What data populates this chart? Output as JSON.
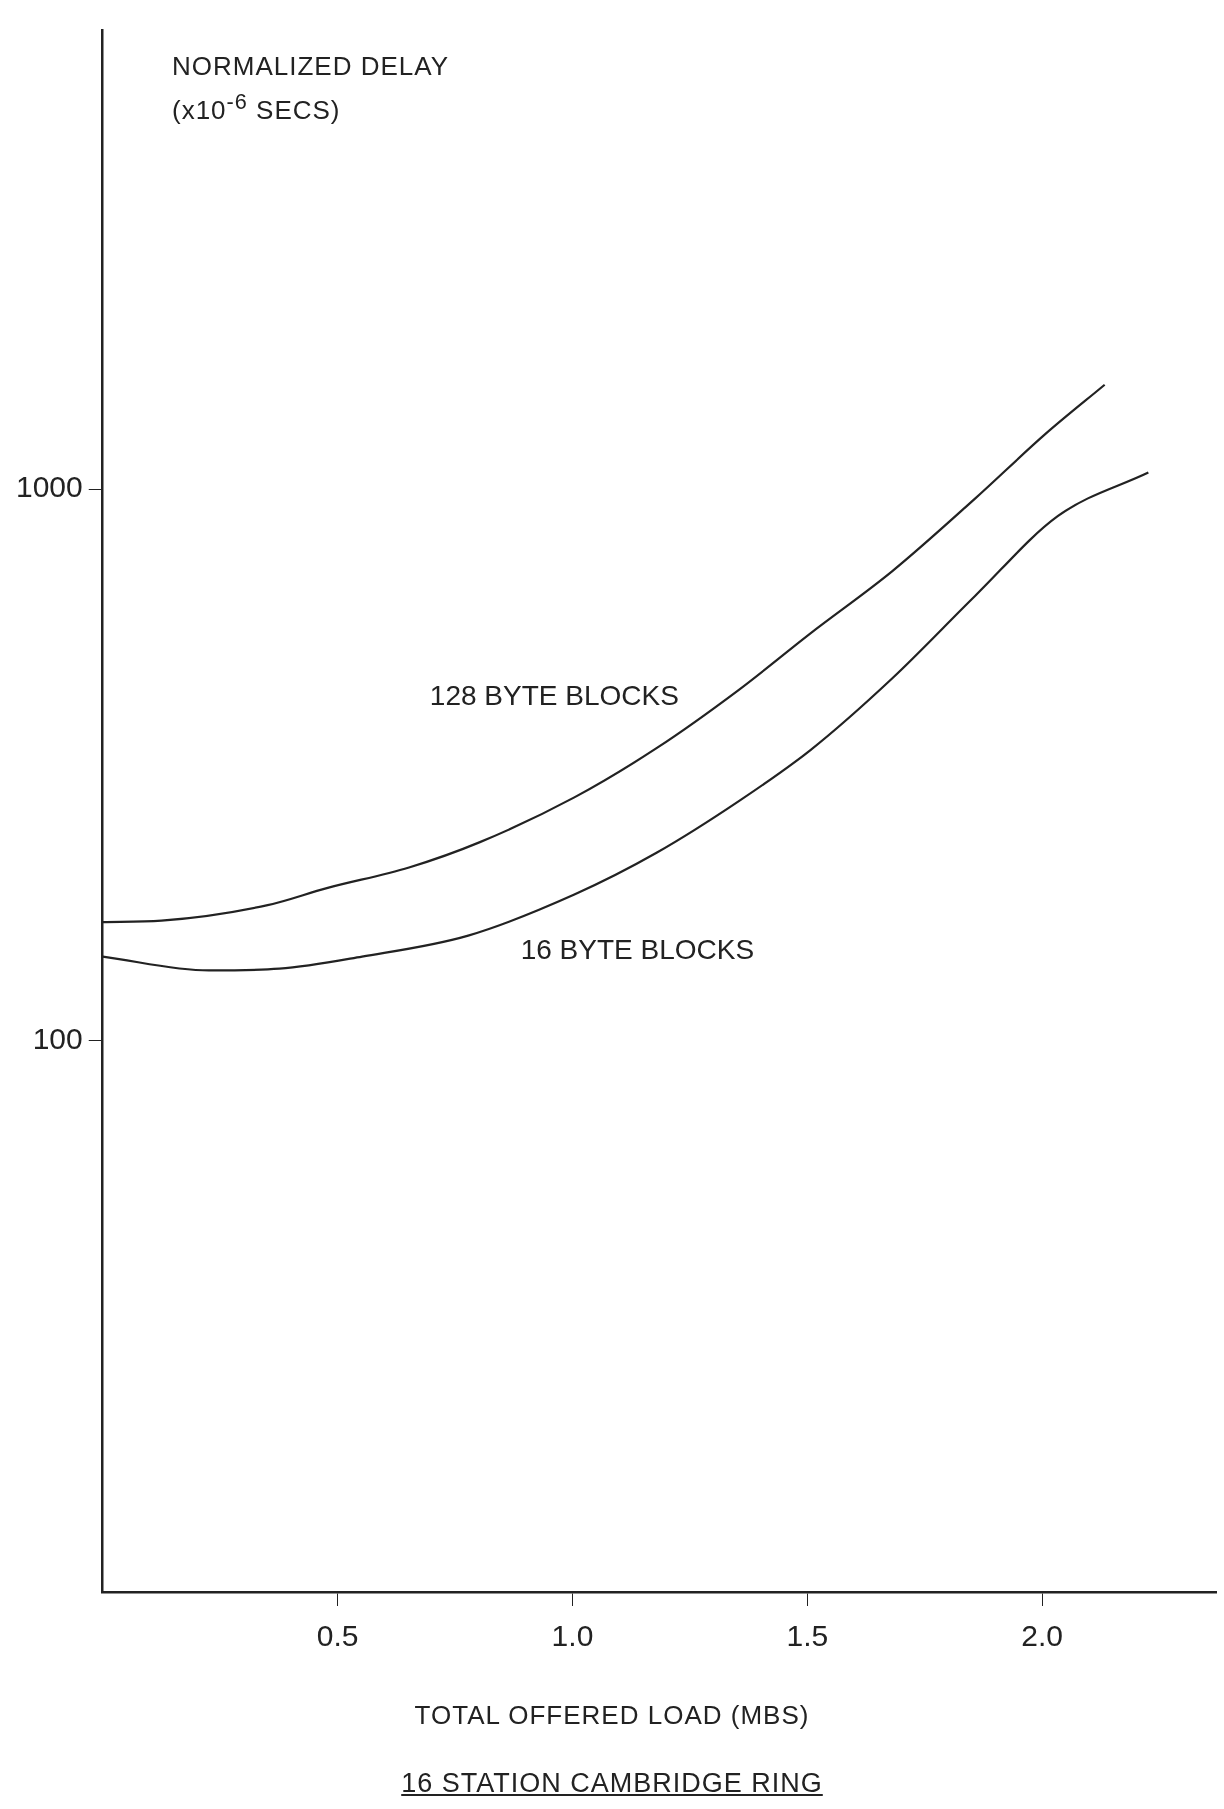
{
  "chart_data": {
    "type": "line",
    "title": "16 STATION CAMBRIDGE RING",
    "xlabel": "TOTAL OFFERED LOAD (MBS)",
    "ylabel": "NORMALIZED DELAY (x10$^{-6}$ SECS)",
    "log": "y",
    "xlim": [
      0,
      2.37
    ],
    "xticks": [
      {
        "value": 0.5,
        "label": "0.5"
      },
      {
        "value": 1,
        "label": "1.0"
      },
      {
        "value": 1.5,
        "label": "1.5"
      },
      {
        "value": 2,
        "label": "2.0"
      }
    ],
    "ylim": [
      10,
      6800
    ],
    "yticks": [
      100,
      1000
    ],
    "grid": false,
    "legend": false,
    "marker": "none",
    "line_style": "solid",
    "series": [
      {
        "name": "128 BYTE BLOCKS",
        "color": "#222222",
        "x": [
          0,
          0.125,
          0.351,
          0.477,
          0.652,
          0.803,
          1.004,
          1.179,
          1.355,
          1.506,
          1.681,
          1.857,
          2.007,
          2.133
        ],
        "values": [
          164,
          165,
          176,
          189,
          206,
          229,
          276,
          339,
          433,
          547,
          710,
          961,
          1259,
          1546
        ]
      },
      {
        "name": "16 BYTE BLOCKS",
        "color": "#222222",
        "x": [
          0,
          0.226,
          0.376,
          0.552,
          0.778,
          1.004,
          1.179,
          1.355,
          1.506,
          1.681,
          1.857,
          2.033,
          2.226
        ],
        "values": [
          142,
          134,
          135,
          142,
          155,
          184,
          219,
          272,
          336,
          454,
          640,
          893,
          1072
        ]
      }
    ]
  }
}
